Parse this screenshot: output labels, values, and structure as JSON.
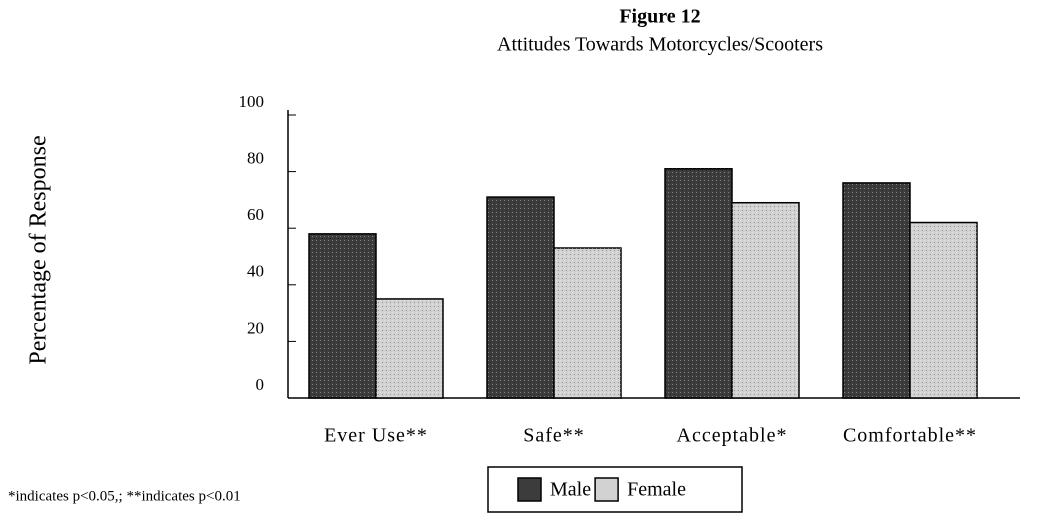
{
  "chart_data": {
    "type": "bar",
    "title": "Figure 12",
    "subtitle": "Attitudes Towards Motorcycles/Scooters",
    "y_label": "Percentage of Response",
    "categories": [
      "Ever Use**",
      "Safe**",
      "Acceptable*",
      "Comfortable**"
    ],
    "series": [
      {
        "name": "Male",
        "color": "#3c3c3c",
        "values": [
          58,
          71,
          81,
          76
        ]
      },
      {
        "name": "Female",
        "color": "#d2d2d2",
        "values": [
          35,
          53,
          69,
          62
        ]
      }
    ],
    "ylim": [
      0,
      100
    ],
    "yticks": [
      0,
      20,
      40,
      60,
      80,
      100
    ],
    "footnote": "*indicates p<0.05,; **indicates p<0.01"
  }
}
